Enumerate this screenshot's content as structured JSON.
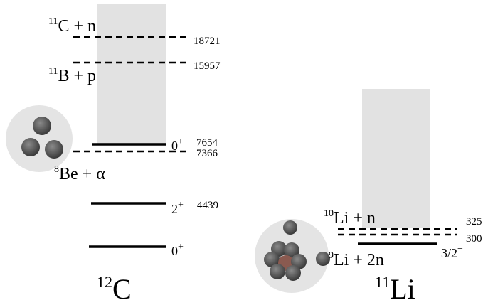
{
  "left": {
    "nucleus": {
      "mass": "12",
      "symbol": "C"
    },
    "thresholds": [
      {
        "mass": "11",
        "label": "C + n",
        "energy": 18721
      },
      {
        "mass": "11",
        "label": "B + p",
        "energy": 15957
      },
      {
        "mass": "8",
        "label": "Be + α",
        "energy": 7366
      }
    ],
    "levels": [
      {
        "spin": "0",
        "parity": "+",
        "energy": 7654
      },
      {
        "spin": "2",
        "parity": "+",
        "energy": 4439
      },
      {
        "spin": "0",
        "parity": "+"
      }
    ]
  },
  "right": {
    "nucleus": {
      "mass": "11",
      "symbol": "Li"
    },
    "thresholds": [
      {
        "mass": "10",
        "label": "Li + n",
        "energy": 325
      },
      {
        "mass": "9",
        "label": "Li + 2n",
        "energy": 300
      }
    ],
    "levels": [
      {
        "spin": "3/2",
        "parity": "−"
      }
    ]
  }
}
